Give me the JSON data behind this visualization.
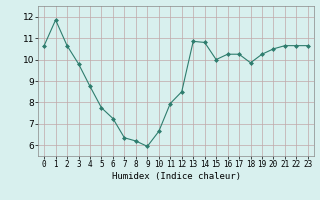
{
  "x": [
    0,
    1,
    2,
    3,
    4,
    5,
    6,
    7,
    8,
    9,
    10,
    11,
    12,
    13,
    14,
    15,
    16,
    17,
    18,
    19,
    20,
    21,
    22,
    23
  ],
  "y": [
    10.65,
    11.85,
    10.65,
    9.8,
    8.75,
    7.75,
    7.25,
    6.35,
    6.2,
    5.95,
    6.65,
    7.95,
    8.5,
    10.85,
    10.8,
    10.0,
    10.25,
    10.25,
    9.85,
    10.25,
    10.5,
    10.65,
    10.65,
    10.65
  ],
  "line_color": "#2e7d6e",
  "marker": "D",
  "marker_size": 2,
  "bg_color": "#d8f0ee",
  "grid_color": "#c0a8a8",
  "xlabel": "Humidex (Indice chaleur)",
  "xlim": [
    -0.5,
    23.5
  ],
  "ylim": [
    5.5,
    12.5
  ],
  "yticks": [
    6,
    7,
    8,
    9,
    10,
    11,
    12
  ],
  "xticks": [
    0,
    1,
    2,
    3,
    4,
    5,
    6,
    7,
    8,
    9,
    10,
    11,
    12,
    13,
    14,
    15,
    16,
    17,
    18,
    19,
    20,
    21,
    22,
    23
  ],
  "xlabel_fontsize": 6.5,
  "tick_fontsize_x": 5.5,
  "tick_fontsize_y": 6.5
}
